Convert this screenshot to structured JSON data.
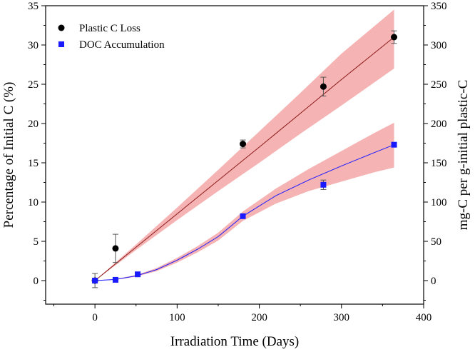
{
  "chart_data": {
    "type": "scatter",
    "xlabel": "Irradiation Time (Days)",
    "ylabel": "Percentage of Initial C (%)",
    "y2label": "mg-C per g-initial plastic-C",
    "xlim": [
      -60,
      400
    ],
    "ylim": [
      -3,
      35
    ],
    "y2lim": [
      -30,
      350
    ],
    "xticks": [
      "0",
      "100",
      "200",
      "300",
      "400"
    ],
    "yticks": [
      "0",
      "5",
      "10",
      "15",
      "20",
      "25",
      "30",
      "35"
    ],
    "y2ticks": [
      "0",
      "50",
      "100",
      "150",
      "200",
      "250",
      "300",
      "350"
    ],
    "grid": false,
    "legend_position": "top-left",
    "series": [
      {
        "name": "Plastic C Loss",
        "marker": "circle",
        "color": "#000000",
        "fit_color": "#8b1a1a",
        "band_color": "#f4a6a6",
        "x": [
          0,
          25,
          180,
          278,
          364
        ],
        "y": [
          0.0,
          4.1,
          17.4,
          24.7,
          31.0
        ],
        "err": [
          0.9,
          1.8,
          0.5,
          1.2,
          0.8
        ],
        "fit": {
          "x": [
            0,
            50,
            100,
            150,
            200,
            250,
            300,
            364
          ],
          "y": [
            0.0,
            4.25,
            8.5,
            12.75,
            17.0,
            21.3,
            25.6,
            31.0
          ],
          "lower": [
            0.0,
            3.9,
            7.7,
            11.4,
            15.0,
            18.7,
            22.3,
            27.0
          ],
          "upper": [
            0.0,
            4.6,
            9.3,
            14.1,
            19.0,
            23.9,
            28.9,
            34.5
          ]
        }
      },
      {
        "name": "DOC Accumulation",
        "marker": "square",
        "color": "#1a1aff",
        "fit_color": "#1a1aff",
        "band_color": "#f4a6a6",
        "x": [
          0,
          25,
          52,
          180,
          278,
          364
        ],
        "y": [
          0.0,
          0.1,
          0.8,
          8.2,
          12.2,
          17.3
        ],
        "err": [
          0.3,
          0.2,
          0.2,
          0.2,
          0.6,
          0.2
        ],
        "fit": {
          "x": [
            0,
            25,
            50,
            75,
            100,
            125,
            150,
            180,
            220,
            260,
            300,
            340,
            364
          ],
          "y": [
            0.0,
            0.15,
            0.6,
            1.4,
            2.6,
            4.0,
            5.6,
            8.2,
            10.8,
            12.8,
            14.6,
            16.3,
            17.3
          ],
          "lower": [
            0.0,
            0.1,
            0.5,
            1.2,
            2.3,
            3.6,
            5.1,
            7.6,
            9.8,
            11.4,
            12.6,
            13.8,
            14.4
          ],
          "upper": [
            0.0,
            0.2,
            0.7,
            1.6,
            2.9,
            4.4,
            6.1,
            8.8,
            11.7,
            14.2,
            16.5,
            18.8,
            20.1
          ]
        }
      }
    ]
  }
}
